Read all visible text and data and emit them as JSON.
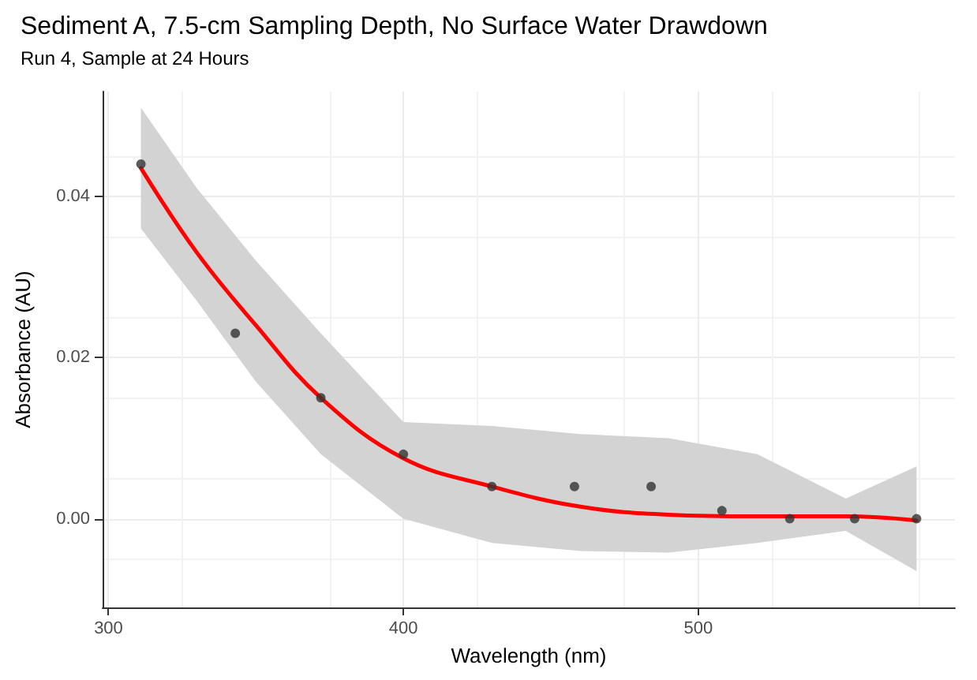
{
  "chart_data": {
    "type": "scatter",
    "title": "Sediment A, 7.5-cm Sampling Depth, No Surface Water Drawdown",
    "subtitle": "Run 4, Sample at 24 Hours",
    "xlabel": "Wavelength (nm)",
    "ylabel": "Absorbance (AU)",
    "x": [
      311,
      343,
      372,
      400,
      430,
      458,
      484,
      508,
      531,
      553,
      574
    ],
    "series": [
      {
        "color": "#333333",
        "values": [
          0.044,
          0.023,
          0.015,
          0.008,
          0.004,
          0.004,
          0.004,
          0.001,
          0.0,
          0.0,
          0.0
        ]
      },
      {
        "type": "line",
        "marker": "none",
        "color": "#ff0000",
        "x": [
          311,
          330,
          350,
          372,
          400,
          430,
          460,
          490,
          520,
          550,
          574
        ],
        "values": [
          0.0435,
          0.033,
          0.024,
          0.015,
          0.0075,
          0.004,
          0.0015,
          0.0005,
          0.0003,
          0.0003,
          -0.0002
        ],
        "lower": [
          0.036,
          0.027,
          0.017,
          0.008,
          0.0,
          -0.003,
          -0.004,
          -0.0042,
          -0.003,
          -0.0015,
          -0.0065
        ],
        "upper": [
          0.051,
          0.041,
          0.032,
          0.023,
          0.012,
          0.0115,
          0.0105,
          0.01,
          0.008,
          0.0025,
          0.0065
        ]
      }
    ],
    "xlim": [
      298,
      587
    ],
    "xticks": [
      300,
      400,
      500
    ],
    "ylim": [
      -0.011,
      0.053
    ],
    "yticks": [
      {
        "value": 0,
        "label": "0.00"
      },
      {
        "value": 0.02,
        "label": "0.02"
      },
      {
        "value": 0.04,
        "label": "0.04"
      }
    ],
    "grid": true,
    "marker": "circle"
  }
}
